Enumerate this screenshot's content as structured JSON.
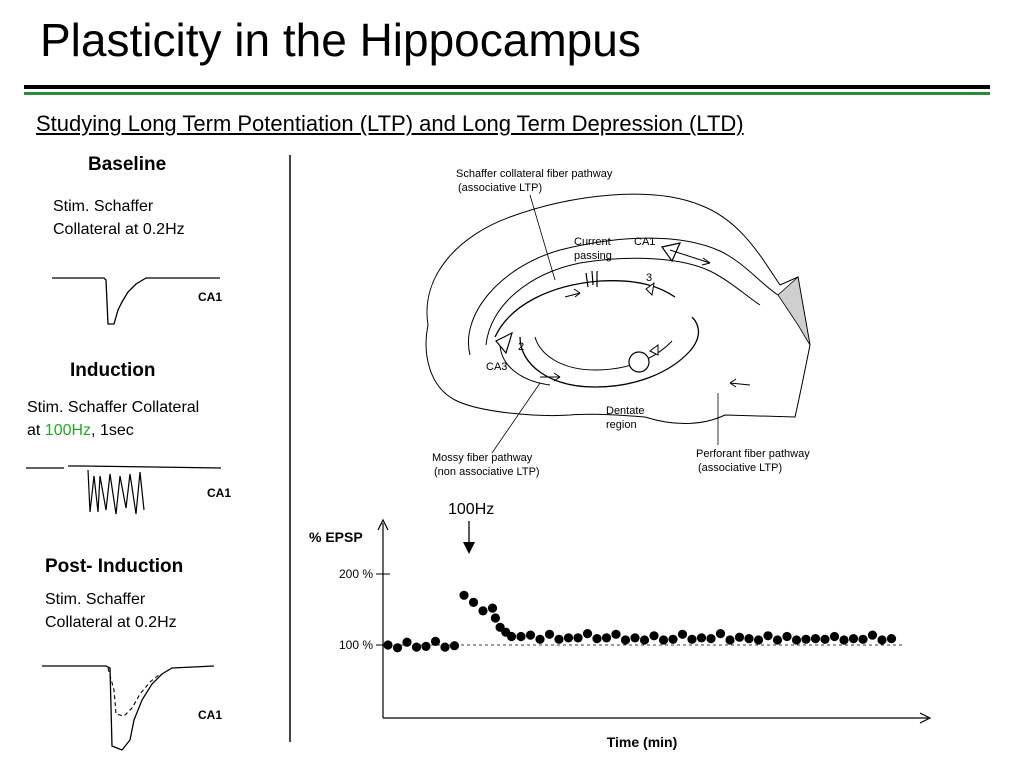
{
  "title": "Plasticity in the Hippocampus",
  "subtitle": "Studying Long Term Potentiation (LTP) and Long Term Depression (LTD)",
  "colors": {
    "rule_green": "#2e8b3a",
    "frequency_highlight": "#2aa52a"
  },
  "baseline": {
    "heading": "Baseline",
    "line1": "Stim. Schaffer",
    "line2": "Collateral at 0.2Hz",
    "trace_label": "CA1"
  },
  "induction": {
    "heading": "Induction",
    "line1": "Stim. Schaffer Collateral",
    "line2_prefix": "at ",
    "line2_freq": "100Hz",
    "line2_suffix": ", 1sec",
    "trace_label": "CA1"
  },
  "post_induction": {
    "heading": "Post-  Induction",
    "line1": "Stim. Schaffer",
    "line2": "Collateral at 0.2Hz",
    "trace_label": "CA1"
  },
  "diagram": {
    "schaffer_label_1": "Schaffer collateral fiber pathway",
    "schaffer_label_2": "(associative LTP)",
    "current_1": "Current",
    "current_2": "passing",
    "ca1": "CA1",
    "num3": "3",
    "num2": "2",
    "ca3": "CA3",
    "dentate_1": "Dentate",
    "dentate_2": "region",
    "mossy_1": "Mossy fiber pathway",
    "mossy_2": "(non associative LTP)",
    "perforant_1": "Perforant fiber pathway",
    "perforant_2": "(associative LTP)"
  },
  "chart_data": {
    "type": "scatter",
    "title": "",
    "xlabel": "Time (min)",
    "ylabel": "% EPSP",
    "y_ticks": [
      "200 %",
      "100 %"
    ],
    "reference_line": 100,
    "annotation": "100Hz",
    "series": [
      {
        "points": [
          [
            0,
            100
          ],
          [
            1,
            96
          ],
          [
            2,
            104
          ],
          [
            3,
            97
          ],
          [
            4,
            98
          ],
          [
            5,
            105
          ],
          [
            6,
            97
          ],
          [
            7,
            99
          ],
          [
            8,
            170
          ],
          [
            9,
            160
          ],
          [
            10,
            148
          ],
          [
            11,
            152
          ],
          [
            11.3,
            138
          ],
          [
            11.8,
            125
          ],
          [
            12.4,
            118
          ],
          [
            13,
            112
          ],
          [
            14,
            112
          ],
          [
            15,
            114
          ],
          [
            16,
            108
          ],
          [
            17,
            115
          ],
          [
            18,
            108
          ],
          [
            19,
            110
          ],
          [
            20,
            110
          ],
          [
            21,
            116
          ],
          [
            22,
            109
          ],
          [
            23,
            110
          ],
          [
            24,
            115
          ],
          [
            25,
            107
          ],
          [
            26,
            110
          ],
          [
            27,
            107
          ],
          [
            28,
            113
          ],
          [
            29,
            107
          ],
          [
            30,
            108
          ],
          [
            31,
            115
          ],
          [
            32,
            108
          ],
          [
            33,
            110
          ],
          [
            34,
            109
          ],
          [
            35,
            116
          ],
          [
            36,
            107
          ],
          [
            37,
            111
          ],
          [
            38,
            109
          ],
          [
            39,
            107
          ],
          [
            40,
            113
          ],
          [
            41,
            107
          ],
          [
            42,
            112
          ],
          [
            43,
            107
          ],
          [
            44,
            108
          ],
          [
            45,
            109
          ],
          [
            46,
            108
          ],
          [
            47,
            112
          ],
          [
            48,
            107
          ],
          [
            49,
            109
          ],
          [
            50,
            108
          ],
          [
            51,
            114
          ],
          [
            52,
            107
          ],
          [
            53,
            109
          ]
        ]
      }
    ]
  }
}
